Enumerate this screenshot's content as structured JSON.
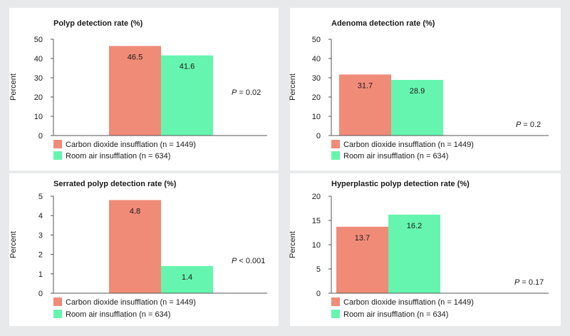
{
  "colors": {
    "background": "#e8e9ea",
    "panel": "#ffffff",
    "co2": "#f08b78",
    "air": "#66f5ae",
    "axis": "#555555",
    "text": "#1a1a1a"
  },
  "chart_data": [
    {
      "type": "bar",
      "title": "Polyp detection rate (%)",
      "ylabel": "Percent",
      "ylim": [
        0,
        50
      ],
      "yticks": [
        "0",
        "10",
        "20",
        "30",
        "40",
        "50"
      ],
      "series": [
        {
          "name": "Carbon dioxide insufflation (n = 1449)",
          "values": [
            46.5
          ],
          "labels": [
            "46.5"
          ]
        },
        {
          "name": "Room air insufflation (n = 634)",
          "values": [
            41.6
          ],
          "labels": [
            "41.6"
          ]
        }
      ],
      "p_prefix": "P",
      "p_rest": " = 0.02",
      "legend": "bottom-left",
      "grid": false
    },
    {
      "type": "bar",
      "title": "Adenoma detection rate (%)",
      "ylabel": "Percent",
      "ylim": [
        0,
        50
      ],
      "yticks": [
        "0",
        "10",
        "20",
        "30",
        "40",
        "50"
      ],
      "series": [
        {
          "name": "Carbon dioxide insufflation (n = 1449)",
          "values": [
            31.7
          ],
          "labels": [
            "31.7"
          ]
        },
        {
          "name": "Room air insufflation (n = 634)",
          "values": [
            28.9
          ],
          "labels": [
            "28.9"
          ]
        }
      ],
      "p_prefix": "P",
      "p_rest": " = 0.2",
      "legend": "bottom-left",
      "grid": false
    },
    {
      "type": "bar",
      "title": "Serrated polyp detection rate (%)",
      "ylabel": "Percent",
      "ylim": [
        0,
        5
      ],
      "yticks": [
        "0",
        "1",
        "2",
        "3",
        "4",
        "5"
      ],
      "series": [
        {
          "name": "Carbon dioxide insufflation (n = 1449)",
          "values": [
            4.8
          ],
          "labels": [
            "4.8"
          ]
        },
        {
          "name": "Room air insufflation (n = 634)",
          "values": [
            1.4
          ],
          "labels": [
            "1.4"
          ]
        }
      ],
      "p_prefix": "P",
      "p_rest": " < 0.001",
      "legend": "bottom-left",
      "grid": false
    },
    {
      "type": "bar",
      "title": "Hyperplastic polyp detection rate (%)",
      "ylabel": "Percent",
      "ylim": [
        0,
        20
      ],
      "yticks": [
        "0",
        "5",
        "10",
        "15",
        "20"
      ],
      "series": [
        {
          "name": "Carbon dioxide insufflation (n = 1449)",
          "values": [
            13.7
          ],
          "labels": [
            "13.7"
          ]
        },
        {
          "name": "Room air insufflation (n = 634)",
          "values": [
            16.2
          ],
          "labels": [
            "16.2"
          ]
        }
      ],
      "p_prefix": "P",
      "p_rest": " = 0.17",
      "legend": "bottom-left",
      "grid": false
    }
  ]
}
